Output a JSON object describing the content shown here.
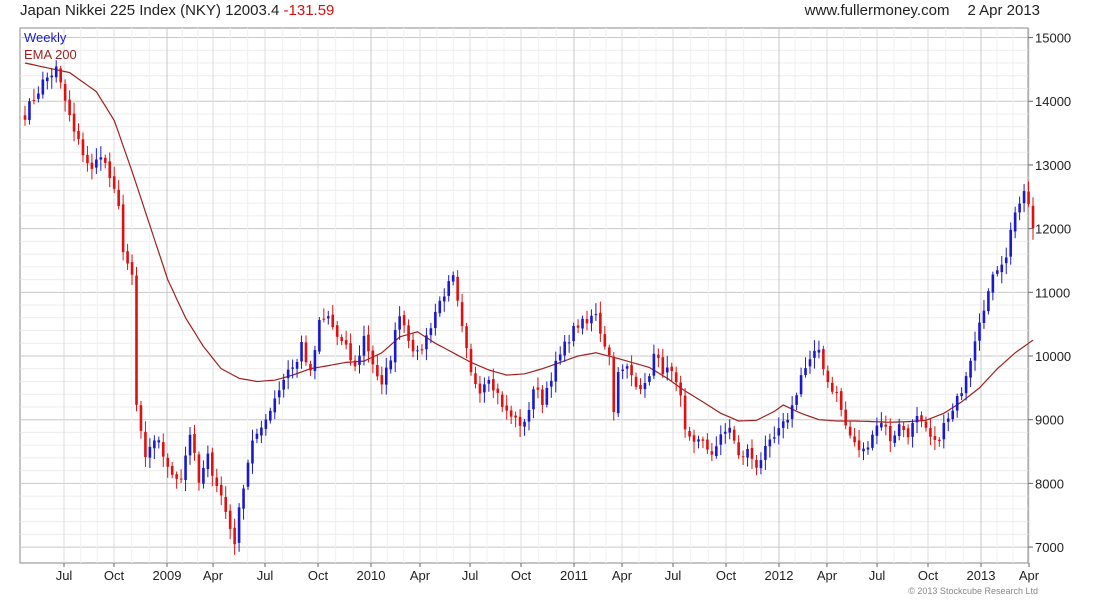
{
  "header": {
    "title": "Japan Nikkei 225 Index (NKY)",
    "last": "12003.4",
    "change": "-131.59",
    "site": "www.fullermoney.com",
    "date": "2 Apr 2013"
  },
  "footer": {
    "copyright": "© 2013 Stockcube Research Ltd"
  },
  "colors": {
    "up": "#1a1acc",
    "down": "#e01010",
    "ema": "#a02020",
    "grid": "#d8d8d8"
  },
  "chart_data": {
    "type": "candlestick",
    "frequency": "Weekly",
    "legend": [
      "Weekly",
      "EMA 200"
    ],
    "legend_position": "top-left",
    "grid": true,
    "y_axis_side": "right",
    "ylim": [
      6750,
      15150
    ],
    "y_ticks": [
      7000,
      8000,
      9000,
      10000,
      11000,
      12000,
      13000,
      14000,
      15000
    ],
    "x_tick_labels": [
      "Jul",
      "Oct",
      "2009",
      "Apr",
      "Jul",
      "Oct",
      "2010",
      "Apr",
      "Jul",
      "Oct",
      "2011",
      "Apr",
      "Jul",
      "Oct",
      "2012",
      "Apr",
      "Jul",
      "Oct",
      "2013",
      "Apr"
    ],
    "close_anchors": [
      [
        0,
        13800
      ],
      [
        4,
        14300
      ],
      [
        7,
        14500
      ],
      [
        11,
        13500
      ],
      [
        15,
        12900
      ],
      [
        17,
        13200
      ],
      [
        19,
        12800
      ],
      [
        21,
        12300
      ],
      [
        22,
        11700
      ],
      [
        24,
        11200
      ],
      [
        25,
        9200
      ],
      [
        27,
        8400
      ],
      [
        30,
        8700
      ],
      [
        32,
        8200
      ],
      [
        35,
        8100
      ],
      [
        37,
        8800
      ],
      [
        39,
        8000
      ],
      [
        41,
        8400
      ],
      [
        44,
        7800
      ],
      [
        46,
        7300
      ],
      [
        47,
        7100
      ],
      [
        49,
        8000
      ],
      [
        51,
        8700
      ],
      [
        53,
        8800
      ],
      [
        55,
        9200
      ],
      [
        57,
        9500
      ],
      [
        59,
        9800
      ],
      [
        61,
        9900
      ],
      [
        62,
        10200
      ],
      [
        64,
        9700
      ],
      [
        66,
        10500
      ],
      [
        68,
        10600
      ],
      [
        70,
        10300
      ],
      [
        72,
        10100
      ],
      [
        74,
        9800
      ],
      [
        76,
        10300
      ],
      [
        78,
        9900
      ],
      [
        80,
        9500
      ],
      [
        82,
        10000
      ],
      [
        84,
        10700
      ],
      [
        86,
        10300
      ],
      [
        88,
        10000
      ],
      [
        90,
        10300
      ],
      [
        92,
        10700
      ],
      [
        94,
        11000
      ],
      [
        96,
        11200
      ],
      [
        98,
        10400
      ],
      [
        100,
        9700
      ],
      [
        102,
        9500
      ],
      [
        104,
        9700
      ],
      [
        106,
        9400
      ],
      [
        108,
        9100
      ],
      [
        110,
        9000
      ],
      [
        112,
        8900
      ],
      [
        114,
        9500
      ],
      [
        116,
        9300
      ],
      [
        118,
        9700
      ],
      [
        120,
        10000
      ],
      [
        122,
        10300
      ],
      [
        124,
        10500
      ],
      [
        126,
        10500
      ],
      [
        128,
        10700
      ],
      [
        129,
        10400
      ],
      [
        131,
        10000
      ],
      [
        132,
        9200
      ],
      [
        133,
        9700
      ],
      [
        135,
        9800
      ],
      [
        137,
        9600
      ],
      [
        139,
        9500
      ],
      [
        141,
        10000
      ],
      [
        143,
        9800
      ],
      [
        145,
        9700
      ],
      [
        147,
        9300
      ],
      [
        148,
        8800
      ],
      [
        150,
        8700
      ],
      [
        152,
        8600
      ],
      [
        154,
        8500
      ],
      [
        156,
        8700
      ],
      [
        158,
        8900
      ],
      [
        160,
        8400
      ],
      [
        162,
        8500
      ],
      [
        164,
        8300
      ],
      [
        166,
        8500
      ],
      [
        168,
        8700
      ],
      [
        170,
        8900
      ],
      [
        172,
        9200
      ],
      [
        174,
        9700
      ],
      [
        176,
        9900
      ],
      [
        178,
        10100
      ],
      [
        180,
        9600
      ],
      [
        182,
        9400
      ],
      [
        184,
        8900
      ],
      [
        186,
        8600
      ],
      [
        188,
        8500
      ],
      [
        190,
        8800
      ],
      [
        192,
        9000
      ],
      [
        194,
        8700
      ],
      [
        196,
        8900
      ],
      [
        198,
        8800
      ],
      [
        200,
        9000
      ],
      [
        202,
        8800
      ],
      [
        204,
        8600
      ],
      [
        206,
        8900
      ],
      [
        208,
        9100
      ],
      [
        210,
        9500
      ],
      [
        212,
        10000
      ],
      [
        214,
        10600
      ],
      [
        216,
        11000
      ],
      [
        218,
        11400
      ],
      [
        220,
        11600
      ],
      [
        222,
        12300
      ],
      [
        224,
        12500
      ],
      [
        225,
        12400
      ],
      [
        226,
        12003
      ]
    ],
    "ema_200": [
      [
        0,
        14600
      ],
      [
        10,
        14450
      ],
      [
        16,
        14150
      ],
      [
        20,
        13700
      ],
      [
        24,
        12900
      ],
      [
        28,
        12050
      ],
      [
        32,
        11200
      ],
      [
        36,
        10600
      ],
      [
        40,
        10150
      ],
      [
        44,
        9800
      ],
      [
        48,
        9650
      ],
      [
        52,
        9600
      ],
      [
        56,
        9620
      ],
      [
        60,
        9700
      ],
      [
        64,
        9800
      ],
      [
        68,
        9850
      ],
      [
        72,
        9900
      ],
      [
        76,
        9920
      ],
      [
        80,
        10050
      ],
      [
        84,
        10300
      ],
      [
        88,
        10380
      ],
      [
        92,
        10200
      ],
      [
        96,
        10050
      ],
      [
        100,
        9900
      ],
      [
        104,
        9780
      ],
      [
        108,
        9700
      ],
      [
        112,
        9720
      ],
      [
        116,
        9800
      ],
      [
        120,
        9900
      ],
      [
        124,
        10000
      ],
      [
        128,
        10050
      ],
      [
        132,
        9980
      ],
      [
        136,
        9900
      ],
      [
        140,
        9820
      ],
      [
        144,
        9650
      ],
      [
        148,
        9450
      ],
      [
        152,
        9280
      ],
      [
        156,
        9100
      ],
      [
        160,
        8980
      ],
      [
        164,
        8990
      ],
      [
        168,
        9130
      ],
      [
        170,
        9230
      ],
      [
        174,
        9100
      ],
      [
        178,
        9000
      ],
      [
        182,
        8980
      ],
      [
        186,
        8980
      ],
      [
        190,
        8970
      ],
      [
        194,
        8960
      ],
      [
        198,
        8970
      ],
      [
        202,
        8990
      ],
      [
        206,
        9100
      ],
      [
        210,
        9280
      ],
      [
        214,
        9500
      ],
      [
        218,
        9800
      ],
      [
        222,
        10050
      ],
      [
        226,
        10250
      ]
    ],
    "weeks": 227
  }
}
